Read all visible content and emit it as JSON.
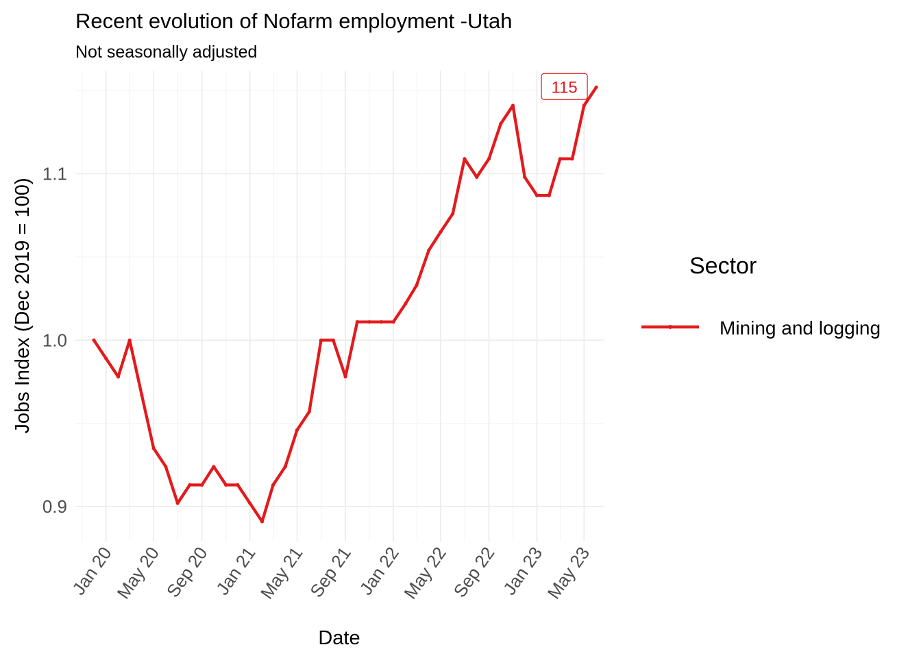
{
  "chart_data": {
    "type": "line",
    "title": "Recent evolution of Nofarm employment -Utah",
    "subtitle": "Not seasonally adjusted",
    "xlabel": "Date",
    "ylabel": "Jobs Index (Dec 2019 = 100)",
    "x_ticks": [
      "Jan 20",
      "May 20",
      "Sep 20",
      "Jan 21",
      "May 21",
      "Sep 21",
      "Jan 22",
      "May 22",
      "Sep 22",
      "Jan 23",
      "May 23"
    ],
    "y_ticks": [
      "0.9",
      "1.0",
      "1.1"
    ],
    "y_tick_values": [
      0.9,
      1.0,
      1.1
    ],
    "ylim": [
      0.879,
      1.162
    ],
    "xlim": [
      "2019-10-15",
      "2023-06-20"
    ],
    "grid": true,
    "legend": {
      "title": "Sector",
      "position": "right"
    },
    "end_label": "115",
    "color": "#e31a1c",
    "x": [
      "2019-12",
      "2020-01",
      "2020-02",
      "2020-03",
      "2020-04",
      "2020-05",
      "2020-06",
      "2020-07",
      "2020-08",
      "2020-09",
      "2020-10",
      "2020-11",
      "2020-12",
      "2021-01",
      "2021-02",
      "2021-03",
      "2021-04",
      "2021-05",
      "2021-06",
      "2021-07",
      "2021-08",
      "2021-09",
      "2021-10",
      "2021-11",
      "2021-12",
      "2022-01",
      "2022-02",
      "2022-03",
      "2022-04",
      "2022-05",
      "2022-06",
      "2022-07",
      "2022-08",
      "2022-09",
      "2022-10",
      "2022-11",
      "2022-12",
      "2023-01",
      "2023-02",
      "2023-03",
      "2023-04",
      "2023-05",
      "2023-06"
    ],
    "series": [
      {
        "name": "Mining and logging",
        "values": [
          1.0,
          0.989,
          0.978,
          1.0,
          0.967,
          0.935,
          0.924,
          0.902,
          0.913,
          0.913,
          0.924,
          0.913,
          0.913,
          0.902,
          0.891,
          0.913,
          0.924,
          0.946,
          0.957,
          1.0,
          1.0,
          0.978,
          1.011,
          1.011,
          1.011,
          1.011,
          1.022,
          1.033,
          1.054,
          1.065,
          1.076,
          1.109,
          1.098,
          1.109,
          1.13,
          1.141,
          1.098,
          1.087,
          1.087,
          1.109,
          1.109,
          1.141,
          1.152
        ]
      }
    ]
  }
}
